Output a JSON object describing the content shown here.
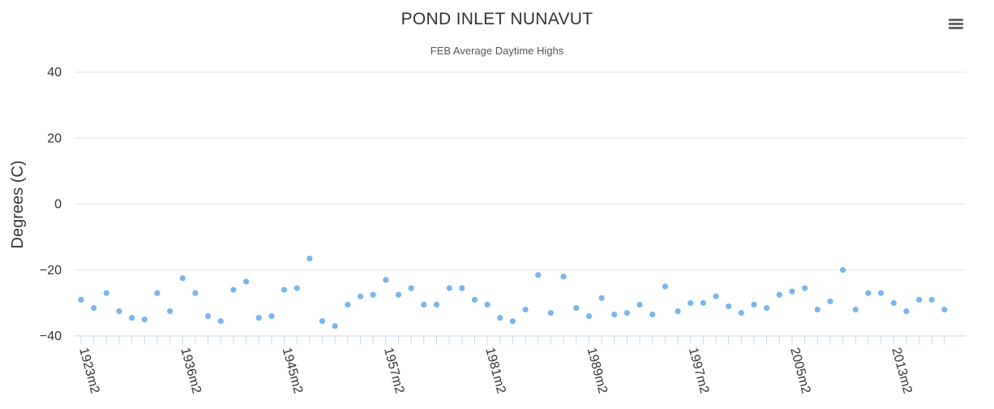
{
  "chart_data": {
    "type": "scatter",
    "title": "POND INLET NUNAVUT",
    "subtitle": "FEB Average Daytime Highs",
    "ylabel": "Degrees (C)",
    "xlabel": "",
    "ylim": [
      -40,
      40
    ],
    "yticks": [
      "40",
      "20",
      "0",
      "−20",
      "−40"
    ],
    "ytick_values": [
      40,
      20,
      0,
      -20,
      -40
    ],
    "grid": true,
    "color": "#7cb5ec",
    "x_labels": [
      "1923m2",
      "1936m2",
      "1945m2",
      "1957m2",
      "1981m2",
      "1989m2",
      "1997m2",
      "2005m2",
      "2013m2"
    ],
    "x_label_indices": [
      0,
      8,
      16,
      24,
      32,
      40,
      48,
      56,
      64
    ],
    "values": [
      -29,
      -31.5,
      -27,
      -32.5,
      -34.5,
      -35,
      -27,
      -32.5,
      -22.5,
      -27,
      -34,
      -35.5,
      -26,
      -23.5,
      -34.5,
      -34,
      -26,
      -25.5,
      -16.5,
      -35.5,
      -37,
      -30.5,
      -28,
      -27.5,
      -23,
      -27.5,
      -25.5,
      -30.5,
      -30.5,
      -25.5,
      -25.5,
      -29,
      -30.5,
      -34.5,
      -35.5,
      -32,
      -21.5,
      -33,
      -22,
      -31.5,
      -34,
      -28.5,
      -33.5,
      -33,
      -30.5,
      -33.5,
      -25,
      -32.5,
      -30,
      -30,
      -28,
      -31,
      -33,
      -30.5,
      -31.5,
      -27.5,
      -26.5,
      -25.5,
      -32,
      -29.5,
      -20,
      -32,
      -27,
      -27,
      -30,
      -32.5,
      -29,
      -29,
      -32
    ]
  },
  "toolbar": {
    "menu_icon": "hamburger-menu-icon"
  }
}
